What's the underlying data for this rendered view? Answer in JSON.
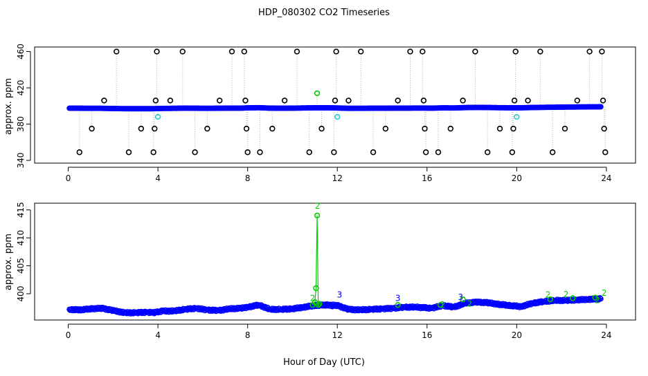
{
  "title": "HDP_080302  CO2 Timeseries",
  "xlabel": "Hour of Day (UTC)",
  "colors": {
    "main": "#0000ff",
    "outline": "#000000",
    "spike": "#00cc00",
    "flag": "#22cccc",
    "connector": "#b0b0b0",
    "axis": "#000000"
  },
  "chart_data": [
    {
      "type": "scatter",
      "xlim": [
        -1.5,
        25.3
      ],
      "ylim": [
        337,
        465
      ],
      "ylabel": "approx. ppm",
      "xticks": [
        0,
        4,
        8,
        12,
        16,
        20,
        24
      ],
      "yticks": [
        340,
        380,
        420,
        460
      ],
      "xtick_labels": [
        "0",
        "4",
        "8",
        "12",
        "16",
        "20",
        "24"
      ],
      "ytick_labels": [
        "340",
        "380",
        "420",
        "460"
      ],
      "grid": false,
      "series": [
        {
          "color": "#0000ff",
          "points": [
            [
              0.05,
              397.5
            ],
            [
              0.5,
              397.5
            ],
            [
              1.0,
              397.4
            ],
            [
              1.5,
              397.4
            ],
            [
              2.0,
              397.2
            ],
            [
              2.5,
              397.0
            ],
            [
              3.0,
              397.0
            ],
            [
              3.5,
              397.0
            ],
            [
              3.8,
              397.0
            ],
            [
              4.2,
              397.3
            ],
            [
              4.7,
              397.4
            ],
            [
              5.2,
              397.6
            ],
            [
              5.7,
              397.5
            ],
            [
              6.2,
              397.4
            ],
            [
              6.7,
              397.5
            ],
            [
              7.2,
              397.6
            ],
            [
              7.7,
              397.6
            ],
            [
              8.0,
              397.9
            ],
            [
              8.5,
              398.1
            ],
            [
              9.0,
              397.6
            ],
            [
              9.5,
              397.5
            ],
            [
              10.0,
              397.6
            ],
            [
              10.5,
              397.8
            ],
            [
              11.0,
              398.0
            ],
            [
              11.5,
              398.0
            ],
            [
              12.0,
              397.8
            ],
            [
              12.5,
              397.4
            ],
            [
              13.0,
              397.4
            ],
            [
              13.5,
              397.5
            ],
            [
              14.0,
              397.5
            ],
            [
              14.5,
              397.6
            ],
            [
              15.0,
              397.6
            ],
            [
              15.5,
              397.7
            ],
            [
              15.9,
              397.7
            ],
            [
              16.2,
              397.6
            ],
            [
              16.7,
              397.9
            ],
            [
              17.2,
              397.8
            ],
            [
              17.7,
              398.2
            ],
            [
              18.2,
              398.4
            ],
            [
              18.7,
              398.3
            ],
            [
              19.2,
              398.1
            ],
            [
              19.7,
              398.0
            ],
            [
              20.2,
              398.0
            ],
            [
              20.7,
              398.3
            ],
            [
              21.2,
              398.5
            ],
            [
              21.7,
              398.6
            ],
            [
              22.2,
              398.8
            ],
            [
              22.7,
              398.9
            ],
            [
              23.2,
              399.0
            ],
            [
              23.75,
              399.1
            ]
          ]
        },
        {
          "color": "#000000",
          "points": [
            [
              0.5,
              349
            ],
            [
              1.05,
              375
            ],
            [
              1.6,
              406
            ],
            [
              2.15,
              460
            ],
            [
              2.7,
              349
            ],
            [
              3.25,
              375
            ],
            [
              3.8,
              349
            ],
            [
              3.85,
              375
            ],
            [
              3.9,
              406
            ],
            [
              3.95,
              460
            ],
            [
              4.55,
              406
            ],
            [
              5.1,
              460
            ],
            [
              5.65,
              349
            ],
            [
              6.2,
              375
            ],
            [
              6.75,
              406
            ],
            [
              7.3,
              460
            ],
            [
              7.85,
              460
            ],
            [
              7.9,
              406
            ],
            [
              7.95,
              375
            ],
            [
              8.0,
              349
            ],
            [
              8.55,
              349
            ],
            [
              9.1,
              375
            ],
            [
              9.65,
              406
            ],
            [
              10.2,
              460
            ],
            [
              10.75,
              349
            ],
            [
              11.3,
              375
            ],
            [
              11.85,
              349
            ],
            [
              11.9,
              406
            ],
            [
              11.95,
              460
            ],
            [
              12.5,
              406
            ],
            [
              13.05,
              460
            ],
            [
              13.6,
              349
            ],
            [
              14.15,
              375
            ],
            [
              14.7,
              406
            ],
            [
              15.25,
              460
            ],
            [
              15.8,
              460
            ],
            [
              15.85,
              406
            ],
            [
              15.9,
              375
            ],
            [
              15.95,
              349
            ],
            [
              16.5,
              349
            ],
            [
              17.05,
              375
            ],
            [
              17.6,
              406
            ],
            [
              18.15,
              460
            ],
            [
              18.7,
              349
            ],
            [
              19.25,
              375
            ],
            [
              19.8,
              349
            ],
            [
              19.85,
              375
            ],
            [
              19.9,
              406
            ],
            [
              19.95,
              460
            ],
            [
              20.5,
              406
            ],
            [
              21.05,
              460
            ],
            [
              21.6,
              349
            ],
            [
              22.15,
              375
            ],
            [
              22.7,
              406
            ],
            [
              23.25,
              460
            ],
            [
              23.8,
              460
            ],
            [
              23.85,
              406
            ],
            [
              23.9,
              375
            ],
            [
              23.95,
              349
            ]
          ]
        },
        {
          "color": "#00cc00",
          "points": [
            [
              11.1,
              414
            ]
          ]
        },
        {
          "color": "#22cccc",
          "points": [
            [
              4.0,
              388
            ],
            [
              12.0,
              388
            ],
            [
              20.0,
              388
            ]
          ]
        }
      ]
    },
    {
      "type": "scatter",
      "xlim": [
        -1.5,
        25.3
      ],
      "ylim": [
        395.3,
        416.2
      ],
      "ylabel": "approx. ppm",
      "xticks": [
        0,
        4,
        8,
        12,
        16,
        20,
        24
      ],
      "yticks": [
        400,
        405,
        410,
        415
      ],
      "xtick_labels": [
        "0",
        "4",
        "8",
        "12",
        "16",
        "20",
        "24"
      ],
      "ytick_labels": [
        "400",
        "405",
        "410",
        "415"
      ],
      "grid": false,
      "series": [
        {
          "color": "#0000ff",
          "points": [
            [
              0.05,
              397.2
            ],
            [
              0.5,
              397.1
            ],
            [
              1.0,
              397.3
            ],
            [
              1.5,
              397.4
            ],
            [
              2.0,
              397.0
            ],
            [
              2.5,
              396.6
            ],
            [
              3.0,
              396.6
            ],
            [
              3.5,
              396.7
            ],
            [
              3.8,
              396.6
            ],
            [
              4.2,
              396.9
            ],
            [
              4.7,
              396.9
            ],
            [
              5.2,
              397.2
            ],
            [
              5.7,
              397.4
            ],
            [
              6.2,
              397.1
            ],
            [
              6.7,
              397.0
            ],
            [
              7.2,
              397.3
            ],
            [
              7.7,
              397.4
            ],
            [
              8.0,
              397.6
            ],
            [
              8.5,
              398.0
            ],
            [
              9.0,
              397.2
            ],
            [
              9.5,
              397.2
            ],
            [
              10.0,
              397.3
            ],
            [
              10.5,
              397.6
            ],
            [
              11.0,
              397.9
            ],
            [
              11.5,
              398.0
            ],
            [
              12.0,
              397.9
            ],
            [
              12.5,
              397.2
            ],
            [
              13.0,
              397.1
            ],
            [
              13.5,
              397.2
            ],
            [
              14.0,
              397.3
            ],
            [
              14.5,
              397.4
            ],
            [
              15.0,
              397.6
            ],
            [
              15.5,
              397.6
            ],
            [
              15.9,
              397.5
            ],
            [
              16.2,
              397.4
            ],
            [
              16.7,
              397.9
            ],
            [
              17.2,
              397.6
            ],
            [
              17.7,
              398.3
            ],
            [
              18.2,
              398.5
            ],
            [
              18.7,
              398.4
            ],
            [
              19.2,
              398.1
            ],
            [
              19.7,
              397.9
            ],
            [
              20.2,
              397.7
            ],
            [
              20.7,
              398.3
            ],
            [
              21.2,
              398.6
            ],
            [
              21.7,
              398.8
            ],
            [
              22.2,
              398.8
            ],
            [
              22.7,
              398.9
            ],
            [
              23.2,
              399.0
            ],
            [
              23.75,
              399.1
            ]
          ]
        },
        {
          "color": "#00cc00",
          "points": [
            [
              10.9,
              398.0
            ],
            [
              11.0,
              398.5
            ],
            [
              11.05,
              401.0
            ],
            [
              11.1,
              414.0
            ],
            [
              11.15,
              398.0
            ],
            [
              11.2,
              398.2
            ],
            [
              14.7,
              398.0
            ],
            [
              16.6,
              398.0
            ],
            [
              17.6,
              399.0
            ],
            [
              21.5,
              399.0
            ],
            [
              22.5,
              399.2
            ],
            [
              23.5,
              399.3
            ]
          ]
        }
      ],
      "annotations": [
        {
          "text": "2",
          "x": 11.12,
          "y": 415.2
        },
        {
          "text": "3",
          "x": 12.1,
          "y": 399.3
        },
        {
          "text": "3",
          "x": 11.8,
          "y": 397.2
        },
        {
          "text": "2",
          "x": 10.9,
          "y": 398.7
        },
        {
          "text": "3",
          "x": 14.7,
          "y": 398.7
        },
        {
          "text": "3",
          "x": 17.5,
          "y": 398.9
        },
        {
          "text": "2",
          "x": 16.7,
          "y": 397.5
        },
        {
          "text": "2",
          "x": 17.9,
          "y": 397.7
        },
        {
          "text": "2",
          "x": 21.4,
          "y": 399.3
        },
        {
          "text": "2",
          "x": 22.2,
          "y": 399.4
        },
        {
          "text": "2",
          "x": 23.6,
          "y": 398.3
        },
        {
          "text": "2",
          "x": 23.9,
          "y": 399.6
        }
      ]
    }
  ]
}
